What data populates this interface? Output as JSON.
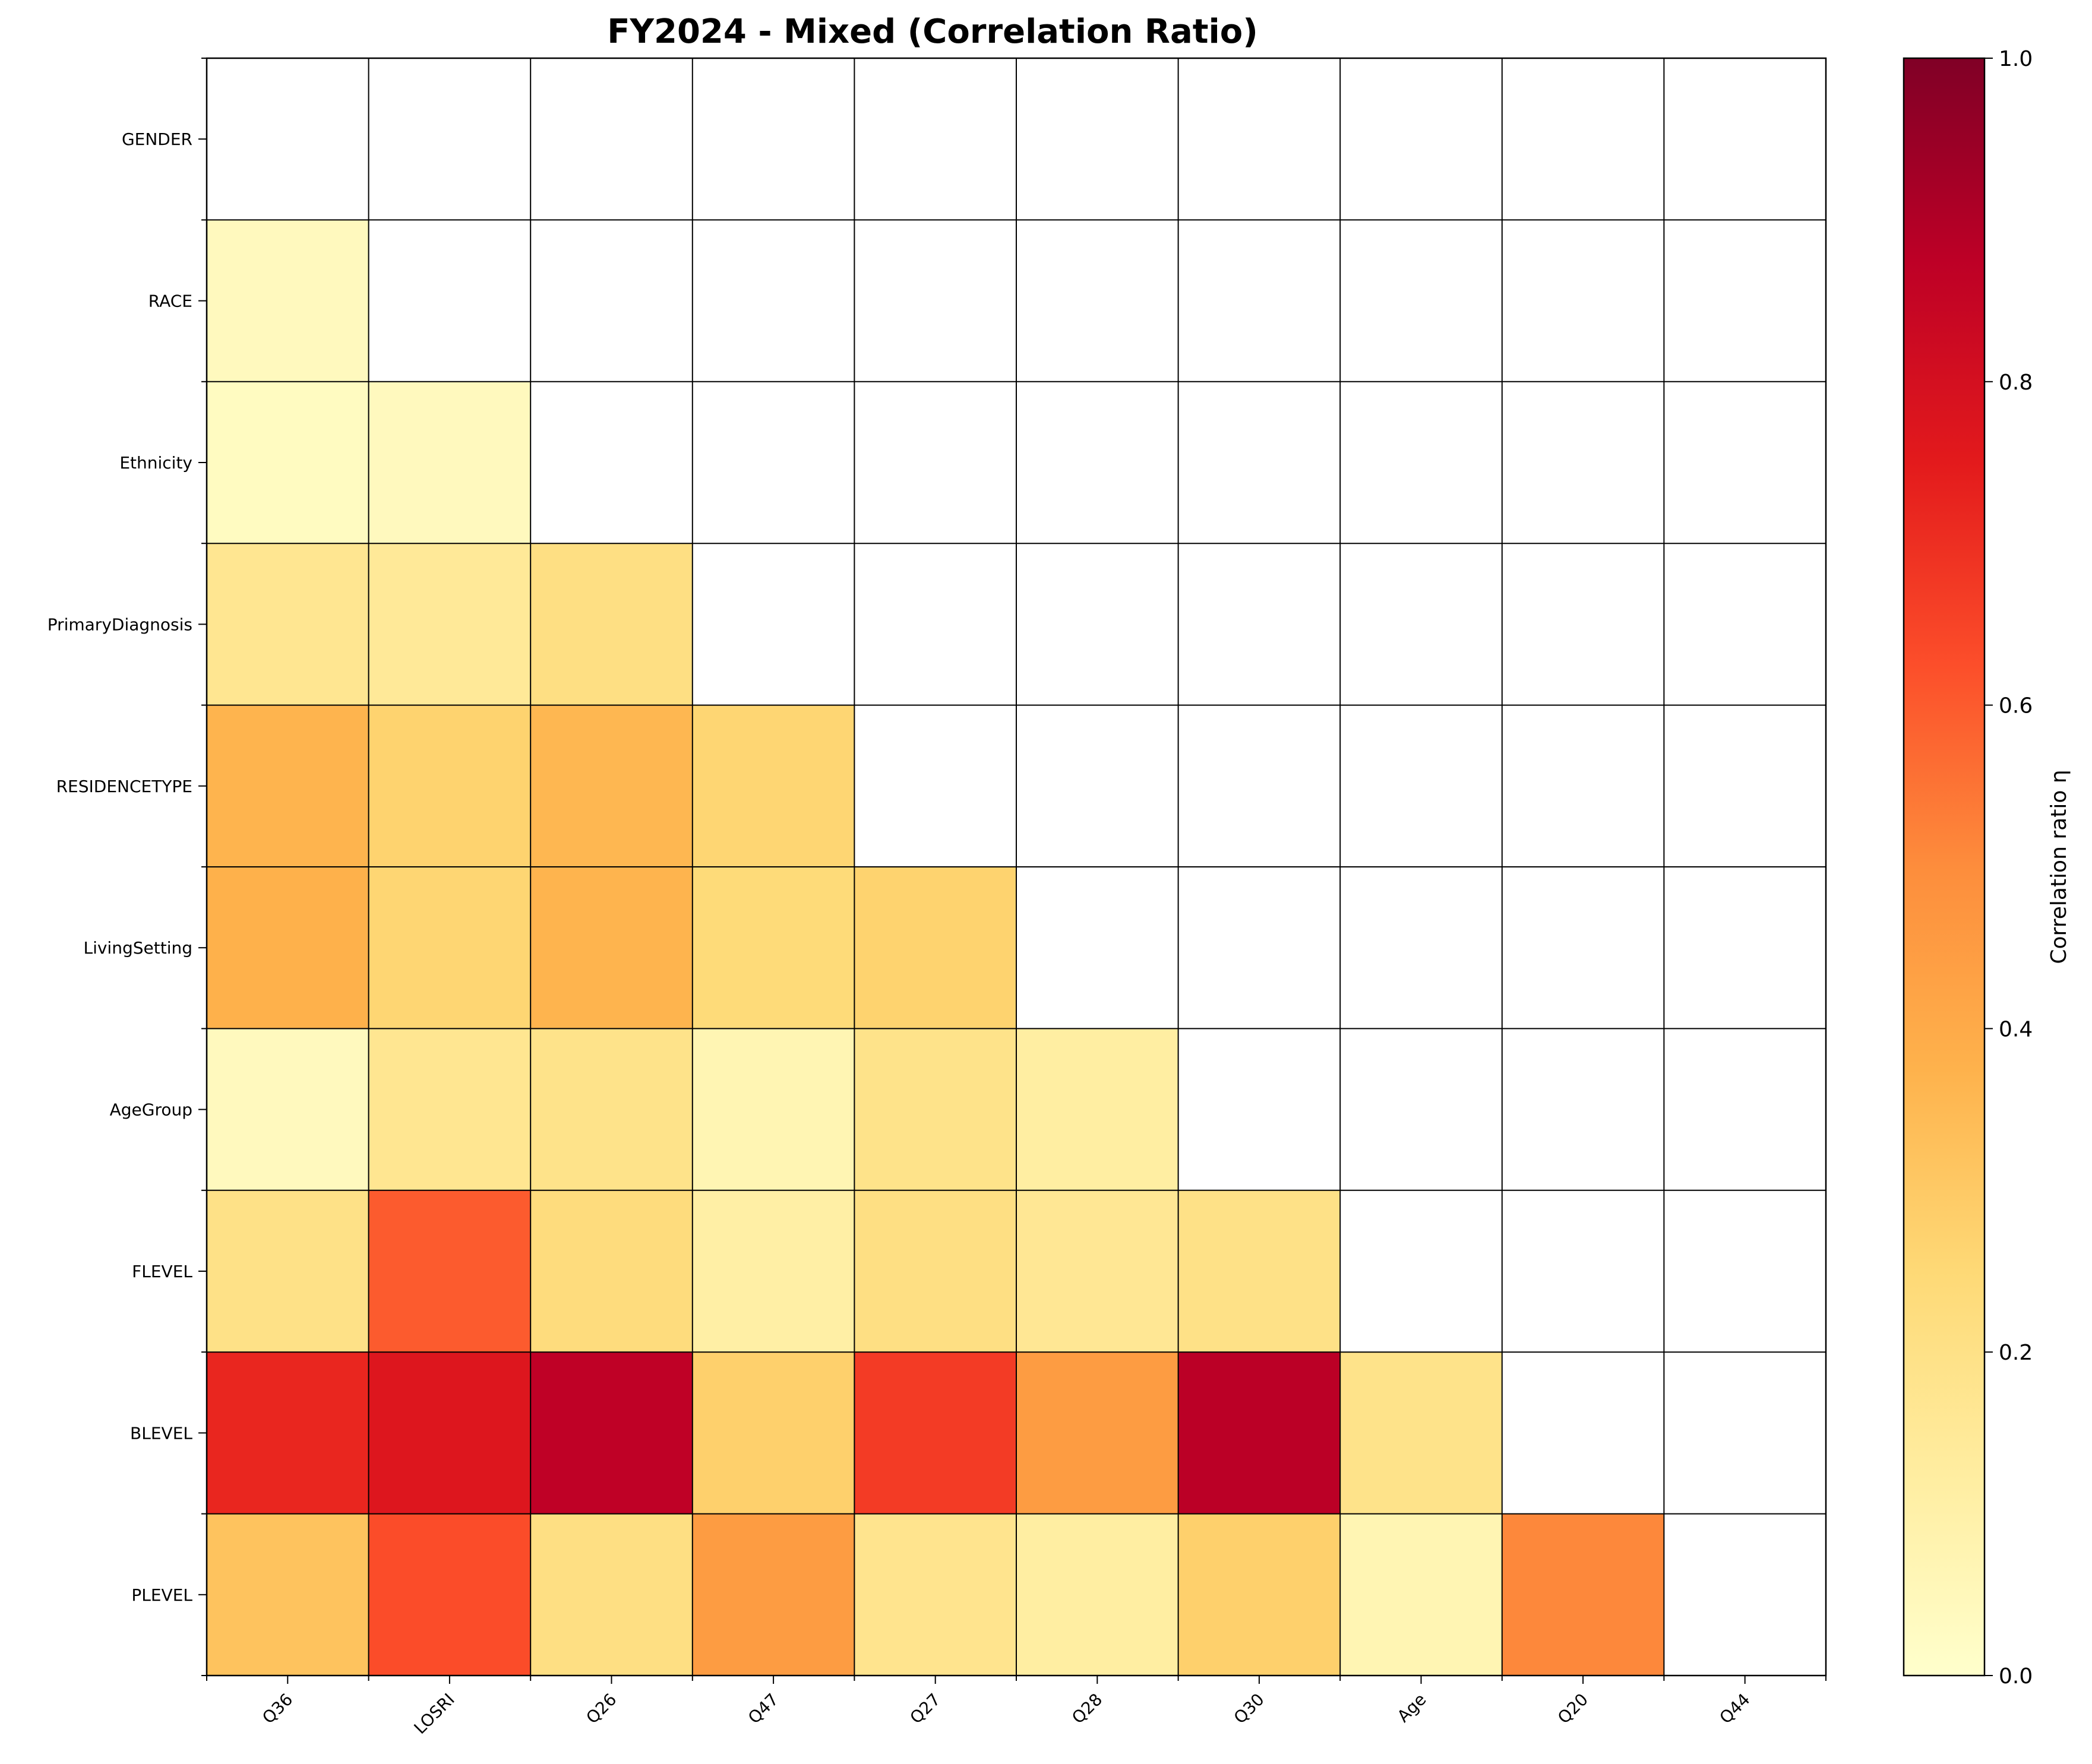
{
  "chart_data": {
    "type": "heatmap",
    "title": "FY2024  - Mixed (Correlation Ratio)",
    "x_categories": [
      "Q36",
      "LOSRI",
      "Q26",
      "Q47",
      "Q27",
      "Q28",
      "Q30",
      "Age",
      "Q20",
      "Q44"
    ],
    "y_categories": [
      "GENDER",
      "RACE",
      "Ethnicity",
      "PrimaryDiagnosis",
      "RESIDENCETYPE",
      "LivingSetting",
      "AgeGroup",
      "FLEVEL",
      "BLEVEL",
      "PLEVEL"
    ],
    "values": [
      [
        null,
        null,
        null,
        null,
        null,
        null,
        null,
        null,
        null,
        null
      ],
      [
        0.04,
        null,
        null,
        null,
        null,
        null,
        null,
        null,
        null,
        null
      ],
      [
        0.03,
        0.04,
        null,
        null,
        null,
        null,
        null,
        null,
        null,
        null
      ],
      [
        0.17,
        0.15,
        0.21,
        null,
        null,
        null,
        null,
        null,
        null,
        null
      ],
      [
        0.37,
        0.27,
        0.36,
        0.26,
        null,
        null,
        null,
        null,
        null,
        null
      ],
      [
        0.38,
        0.26,
        0.37,
        0.24,
        0.27,
        null,
        null,
        null,
        null,
        null
      ],
      [
        0.04,
        0.17,
        0.19,
        0.07,
        0.19,
        0.12,
        null,
        null,
        null,
        null
      ],
      [
        0.2,
        0.6,
        0.23,
        0.11,
        0.21,
        0.16,
        0.2,
        null,
        null,
        null
      ],
      [
        0.72,
        0.77,
        0.87,
        0.28,
        0.67,
        0.45,
        0.88,
        0.19,
        null,
        null
      ],
      [
        0.32,
        0.63,
        0.21,
        0.45,
        0.18,
        0.12,
        0.28,
        0.07,
        0.51,
        null
      ]
    ],
    "colormap": "YlOrRd",
    "colormap_stops": [
      "#ffffcc",
      "#ffeda0",
      "#fed976",
      "#feb24c",
      "#fd8d3c",
      "#fc4e2a",
      "#e31a1c",
      "#bd0026",
      "#800026"
    ],
    "vmin": 0.0,
    "vmax": 1.0,
    "masked_color": "#ffffff",
    "grid": true,
    "grid_color": "#000000",
    "colorbar": {
      "label": "Correlation ratio η",
      "ticks": [
        "0.0",
        "0.2",
        "0.4",
        "0.6",
        "0.8",
        "1.0"
      ],
      "tick_values": [
        0.0,
        0.2,
        0.4,
        0.6,
        0.8,
        1.0
      ],
      "placement": "right"
    }
  }
}
